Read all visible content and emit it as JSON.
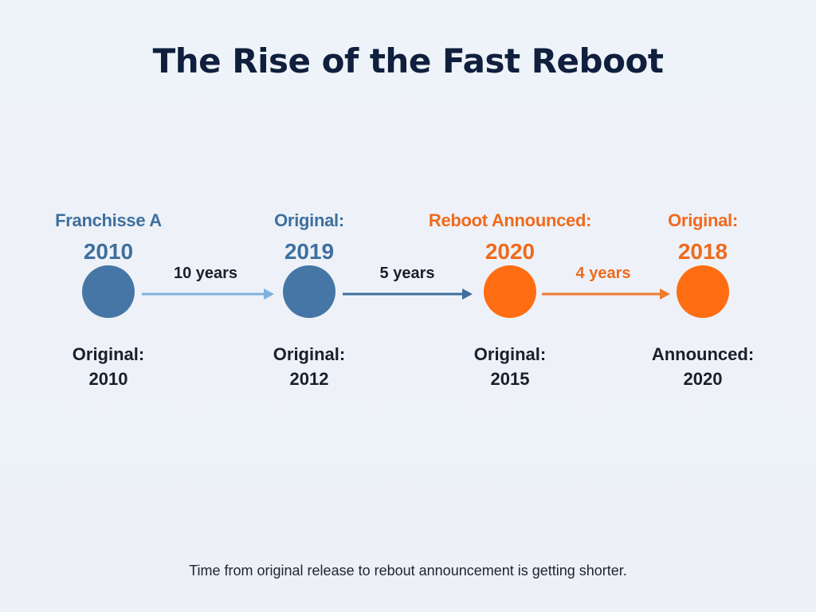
{
  "title": "The Rise of the Fast Reboot",
  "nodes": [
    {
      "top_label": "Franchisse A",
      "year": "2010",
      "bottom_line1": "Original:",
      "bottom_line2": "2010",
      "color": "#4676a5"
    },
    {
      "top_label": "Original:",
      "year": "2019",
      "bottom_line1": "Original:",
      "bottom_line2": "2012",
      "color": "#4676a5"
    },
    {
      "top_label": "Reboot Announced:",
      "year": "2020",
      "bottom_line1": "Original:",
      "bottom_line2": "2015",
      "color": "#ff6d12"
    },
    {
      "top_label": "Original:",
      "year": "2018",
      "bottom_line1": "Announced:",
      "bottom_line2": "2020",
      "color": "#ff6d12"
    }
  ],
  "gaps": [
    {
      "label": "10 years",
      "color": "#1a1f2c",
      "arrow_color": "#7fb2dd"
    },
    {
      "label": "5 years",
      "color": "#1a1f2c",
      "arrow_color": "#3f6f9e"
    },
    {
      "label": "4 years",
      "color": "#ef6a1d",
      "arrow_color": "#f07a30"
    }
  ],
  "footer": "Time from original release to rebout announcement is getting shorter."
}
